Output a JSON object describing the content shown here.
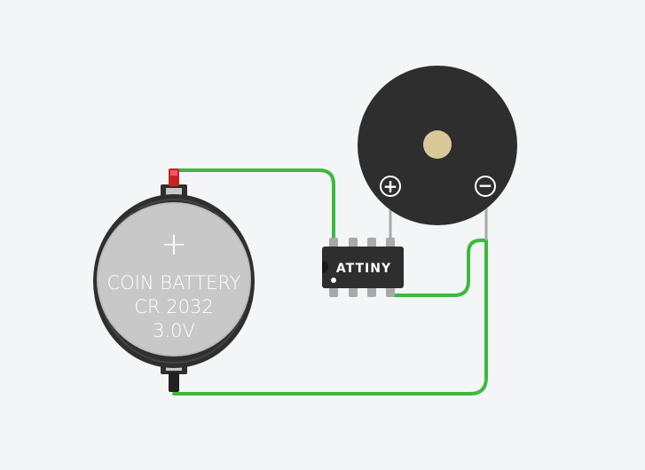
{
  "battery": {
    "symbol": "+",
    "line1": "COIN BATTERY",
    "line2": "CR 2032",
    "line3": "3.0V"
  },
  "chip": {
    "label": "ATTINY"
  },
  "buzzer": {
    "positive_symbol": "+",
    "negative_symbol": "−"
  },
  "colors": {
    "background": "#f4f5f7",
    "wire": "#3dba3d",
    "battery_body": "#2f2f2f",
    "battery_face": "#c8c8c8",
    "chip_body": "#2e2e2e",
    "buzzer_body": "#2e2e2e",
    "buzzer_center": "#d9c89a",
    "positive_terminal": "#d22a2a"
  }
}
